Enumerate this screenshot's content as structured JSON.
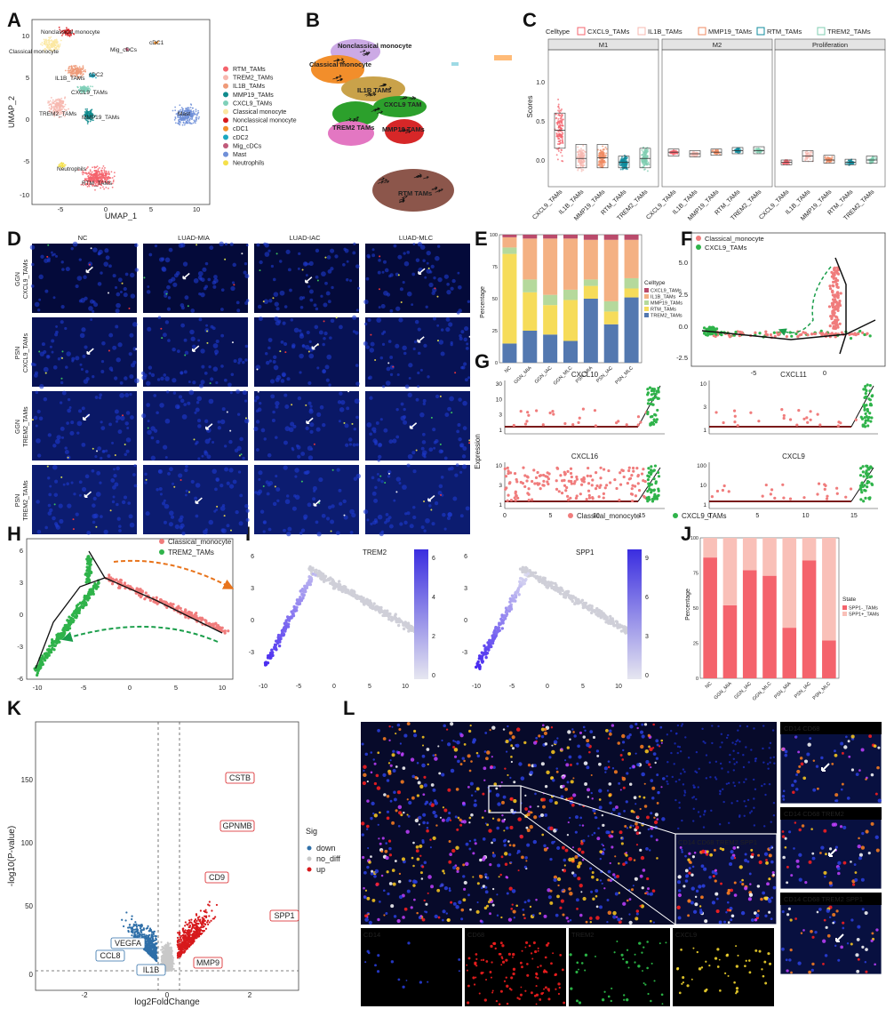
{
  "panels": {
    "A": "A",
    "B": "B",
    "C": "C",
    "D": "D",
    "E": "E",
    "F": "F",
    "G": "G",
    "H": "H",
    "I": "I",
    "J": "J",
    "K": "K",
    "L": "L"
  },
  "panel_a": {
    "xlabel": "UMAP_1",
    "ylabel": "UMAP_2",
    "xticks": [
      "-5",
      "0",
      "5",
      "10"
    ],
    "yticks": [
      "10",
      "5",
      "0",
      "-5",
      "-10"
    ],
    "cluster_labels": [
      "Nonclassical monocyte",
      "Classical monocyte",
      "Mig_cDCs",
      "cDC1",
      "IL1B_TAMs",
      "cDC2",
      "CXCL9_TAMs",
      "TREM2_TAMs",
      "MMP19_TAMs",
      "Mast",
      "Neutrophils",
      "RTM_TAMs"
    ],
    "legend": [
      {
        "label": "RTM_TAMs",
        "color": "#f4636c"
      },
      {
        "label": "TREM2_TAMs",
        "color": "#f7b8b0"
      },
      {
        "label": "IL1B_TAMs",
        "color": "#ef9a78"
      },
      {
        "label": "MMP19_TAMs",
        "color": "#0f8b8d"
      },
      {
        "label": "CXCL9_TAMs",
        "color": "#7fd0b9"
      },
      {
        "label": "Classical monocyte",
        "color": "#fbe7a1"
      },
      {
        "label": "Nonclassical monocyte",
        "color": "#d7191c"
      },
      {
        "label": "cDC1",
        "color": "#f28e2b"
      },
      {
        "label": "cDC2",
        "color": "#1aa7c0"
      },
      {
        "label": "Mig_cDCs",
        "color": "#c05a7a"
      },
      {
        "label": "Mast",
        "color": "#6f8fd8"
      },
      {
        "label": "Neutrophils",
        "color": "#f5e04a"
      }
    ]
  },
  "panel_b": {
    "labels": [
      "Nonclassical monocyte",
      "Classical monocyte",
      "IL1B TAMs",
      "CXCL9 TAM",
      "TREM2 TAMs",
      "MMP19 TAMs",
      "RTM TAMs"
    ]
  },
  "panel_c": {
    "legend_title": "Celltype",
    "legend": [
      {
        "label": "CXCL9_TAMs",
        "color": "#f4636c"
      },
      {
        "label": "IL1B_TAMs",
        "color": "#f7b8b0"
      },
      {
        "label": "MMP19_TAMs",
        "color": "#ef8a62"
      },
      {
        "label": "RTM_TAMs",
        "color": "#0f8b9d"
      },
      {
        "label": "TREM2_TAMs",
        "color": "#7fcdb0"
      }
    ],
    "facets": [
      "M1",
      "M2",
      "Proliferation"
    ],
    "ylabel": "Scores",
    "yticks": [
      "1.0",
      "0.5",
      "0.0"
    ],
    "categories": [
      "CXCL9_TAMs",
      "IL1B_TAMs",
      "MMP19_TAMs",
      "RTM_TAMs",
      "TREM2_TAMs"
    ]
  },
  "panel_d": {
    "columns": [
      "NC",
      "LUAD-MIA",
      "LUAD-IAC",
      "LUAD-MLC"
    ],
    "rows": [
      [
        "GGN",
        "CXCL9_TAMs"
      ],
      [
        "PSN",
        "CXCL9_TAMs"
      ],
      [
        "GGN",
        "TREM2_TAMs"
      ],
      [
        "PSN",
        "TREM2_TAMs"
      ]
    ]
  },
  "panel_e": {
    "ylabel": "Percentage",
    "yticks": [
      "100",
      "75",
      "50",
      "25",
      "0"
    ],
    "legend_title": "Celltype",
    "legend": [
      {
        "label": "CXCL9_TAMs",
        "color": "#b94a6b"
      },
      {
        "label": "IL1B_TAMs",
        "color": "#f4b183"
      },
      {
        "label": "MMP19_TAMs",
        "color": "#b5d99c"
      },
      {
        "label": "RTM_TAMs",
        "color": "#f6dc5a"
      },
      {
        "label": "TREM2_TAMs",
        "color": "#5378b0"
      }
    ]
  },
  "panel_f": {
    "legend": [
      {
        "label": "Classical_monocyte",
        "color": "#f07c7c"
      },
      {
        "label": "CXCL9_TAMs",
        "color": "#2fb34a"
      }
    ],
    "xticks": [
      "-5",
      "0"
    ],
    "yticks": [
      "5.0",
      "2.5",
      "0.0",
      "-2.5"
    ]
  },
  "panel_g": {
    "ylabel": "Expression",
    "genes": [
      "CXCL10",
      "CXCL11",
      "CXCL16",
      "CXCL9"
    ],
    "yticks_top_left": [
      "30",
      "10",
      "3",
      "1"
    ],
    "yticks_top_right": [
      "10",
      "3",
      "1"
    ],
    "yticks_bottom_left": [
      "10",
      "3",
      "1"
    ],
    "yticks_bottom_right": [
      "100",
      "10",
      "1"
    ],
    "xticks": [
      "0",
      "5",
      "10",
      "15"
    ],
    "legend": [
      {
        "label": "Classical_monocyte",
        "color": "#f07c7c"
      },
      {
        "label": "CXCL9_TAMs",
        "color": "#2fb34a"
      }
    ]
  },
  "panel_h": {
    "legend": [
      {
        "label": "Classical_monocyte",
        "color": "#f07c7c"
      },
      {
        "label": "TREM2_TAMs",
        "color": "#2fb34a"
      }
    ],
    "xticks": [
      "-10",
      "-5",
      "0",
      "5",
      "10"
    ],
    "yticks": [
      "6",
      "3",
      "0",
      "-3",
      "-6"
    ]
  },
  "panel_i": {
    "genes": [
      "TREM2",
      "SPP1"
    ],
    "xticks": [
      "-10",
      "-5",
      "0",
      "5",
      "10"
    ],
    "yticks": [
      "6",
      "3",
      "0",
      "-3"
    ],
    "colorbar_trem2": [
      "6",
      "4",
      "2",
      "0"
    ],
    "colorbar_spp1": [
      "9",
      "6",
      "3",
      "0"
    ]
  },
  "panel_j": {
    "ylabel": "Percentage",
    "yticks": [
      "100",
      "75",
      "50",
      "25",
      "0"
    ],
    "legend_title": "State",
    "legend": [
      {
        "label": "SPP1-_TAMs",
        "color": "#f4636c"
      },
      {
        "label": "SPP1+_TAMs",
        "color": "#f9c0b8"
      }
    ]
  },
  "panel_k": {
    "xlabel": "log2FoldChange",
    "ylabel": "-log10(P-value)",
    "xticks": [
      "-2",
      "0",
      "2"
    ],
    "yticks": [
      "150",
      "100",
      "50",
      "0"
    ],
    "legend_title": "Sig",
    "legend": [
      {
        "label": "down",
        "color": "#2f6fa8"
      },
      {
        "label": "no_diff",
        "color": "#c8c8c8"
      },
      {
        "label": "up",
        "color": "#d7191c"
      }
    ],
    "gene_labels_up": [
      "CSTB",
      "GPNMB",
      "CD9",
      "SPP1",
      "MMP9"
    ],
    "gene_labels_down": [
      "VEGFA",
      "CCL8",
      "IL1B"
    ]
  },
  "panel_l": {
    "inset_main": [
      "CD14",
      "CD68",
      "TREM2",
      "SPP1"
    ],
    "side": [
      [
        "CD14",
        "CD68"
      ],
      [
        "CD14",
        "CD68",
        "TREM2"
      ],
      [
        "CD14",
        "CD68",
        "TREM2",
        "SPP1"
      ]
    ],
    "bottom": [
      "CD14",
      "CD68",
      "TREM2",
      "CXCL9"
    ]
  },
  "chart_data": [
    {
      "type": "bar",
      "id": "E",
      "stacked": true,
      "categories": [
        "NC",
        "GGN_MIA",
        "GGN_IAC",
        "GGN_MLC",
        "PSN_MIA",
        "PSN_IAC",
        "PSN_MLC"
      ],
      "series": [
        {
          "name": "TREM2_TAMs",
          "values": [
            15,
            25,
            22,
            17,
            50,
            30,
            51
          ]
        },
        {
          "name": "RTM_TAMs",
          "values": [
            70,
            30,
            23,
            32,
            10,
            10,
            7
          ]
        },
        {
          "name": "MMP19_TAMs",
          "values": [
            5,
            10,
            8,
            8,
            5,
            8,
            8
          ]
        },
        {
          "name": "IL1B_TAMs",
          "values": [
            8,
            32,
            44,
            40,
            31,
            48,
            30
          ]
        },
        {
          "name": "CXCL9_TAMs",
          "values": [
            2,
            3,
            3,
            3,
            4,
            4,
            4
          ]
        }
      ],
      "ylim": [
        0,
        100
      ]
    },
    {
      "type": "bar",
      "id": "J",
      "stacked": true,
      "categories": [
        "NC",
        "GGN_MIA",
        "GGN_IAC",
        "GGN_MLC",
        "PSN_MIA",
        "PSN_IAC",
        "PSN_MLC"
      ],
      "series": [
        {
          "name": "SPP1-_TAMs",
          "values": [
            86,
            52,
            77,
            73,
            36,
            84,
            27
          ]
        },
        {
          "name": "SPP1+_TAMs",
          "values": [
            14,
            48,
            23,
            27,
            64,
            16,
            73
          ]
        }
      ],
      "ylim": [
        0,
        100
      ]
    }
  ]
}
